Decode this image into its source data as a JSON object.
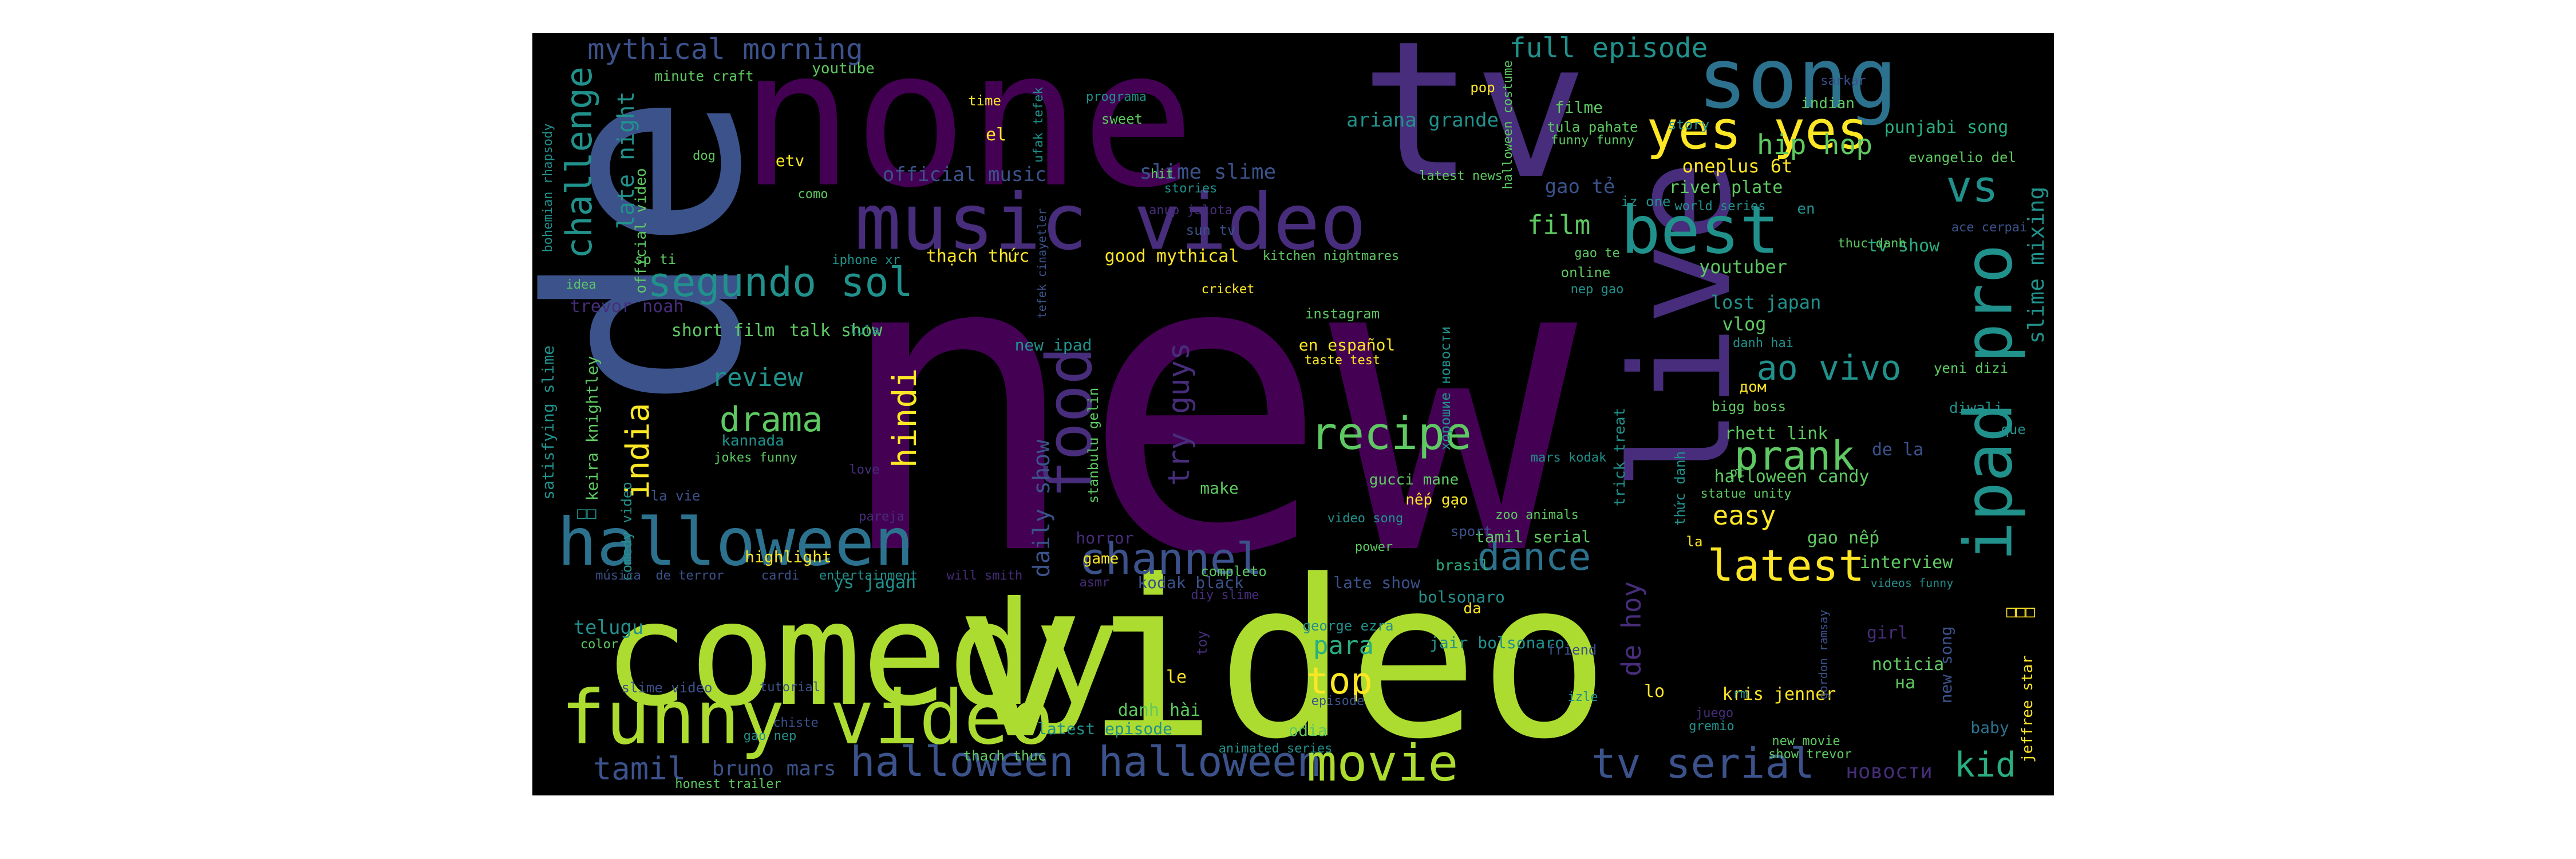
{
  "palette": {
    "background": "#000000",
    "dark_purple": "#440154",
    "purple": "#472d7b",
    "indigo": "#3b528b",
    "blue": "#2c728e",
    "teal": "#21918c",
    "green_teal": "#28ae80",
    "green": "#5ec962",
    "lime": "#addc30",
    "yellow": "#fde725"
  },
  "words": [
    {
      "text": "new",
      "color": "#440154"
    },
    {
      "text": "de",
      "color": "#3b528b"
    },
    {
      "text": "none",
      "color": "#440154"
    },
    {
      "text": "tv",
      "color": "#472d7b"
    },
    {
      "text": "video",
      "color": "#addc30"
    },
    {
      "text": "comedy",
      "color": "#addc30"
    },
    {
      "text": "live",
      "color": "#472d7b"
    },
    {
      "text": "song",
      "color": "#2c728e"
    },
    {
      "text": "music video",
      "color": "#472d7b"
    },
    {
      "text": "funny video",
      "color": "#addc30"
    },
    {
      "text": "halloween",
      "color": "#2c728e"
    },
    {
      "text": "ipad pro",
      "color": "#21918c"
    },
    {
      "text": "best",
      "color": "#21918c"
    },
    {
      "text": "yes yes",
      "color": "#fde725"
    },
    {
      "text": "food",
      "color": "#472d7b"
    },
    {
      "text": "challenge",
      "color": "#21918c"
    },
    {
      "text": "segundo sol",
      "color": "#21918c"
    },
    {
      "text": "halloween halloween",
      "color": "#3b528b"
    },
    {
      "text": "movie",
      "color": "#addc30"
    },
    {
      "text": "tv serial",
      "color": "#3b528b"
    },
    {
      "text": "channel",
      "color": "#3b528b"
    },
    {
      "text": "latest",
      "color": "#fde725"
    },
    {
      "text": "prank",
      "color": "#5ec962"
    },
    {
      "text": "recipe",
      "color": "#5ec962"
    },
    {
      "text": "dance",
      "color": "#2c728e"
    },
    {
      "text": "ao vivo",
      "color": "#21918c"
    },
    {
      "text": "vs",
      "color": "#21918c"
    },
    {
      "text": "drama",
      "color": "#5ec962"
    },
    {
      "text": "hindi",
      "color": "#fde725"
    },
    {
      "text": "india",
      "color": "#fde725"
    },
    {
      "text": "mythical morning",
      "color": "#3b528b"
    },
    {
      "text": "full episode",
      "color": "#21918c"
    },
    {
      "text": "tamil",
      "color": "#3b528b"
    },
    {
      "text": "top",
      "color": "#fde725"
    },
    {
      "text": "kid",
      "color": "#28ae80"
    },
    {
      "text": "try guys",
      "color": "#472d7b"
    },
    {
      "text": "hip hop",
      "color": "#5ec962"
    },
    {
      "text": "film",
      "color": "#5ec962"
    },
    {
      "text": "review",
      "color": "#21918c"
    },
    {
      "text": "de hoy",
      "color": "#472d7b"
    },
    {
      "text": "bruno mars",
      "color": "#3b528b"
    },
    {
      "text": "daily show",
      "color": "#3b528b"
    },
    {
      "text": "late night",
      "color": "#21918c"
    },
    {
      "text": "easy",
      "color": "#fde725"
    },
    {
      "text": "para",
      "color": "#28ae80"
    },
    {
      "text": "slime mixing",
      "color": "#21918c"
    },
    {
      "text": "ariana grande",
      "color": "#21918c"
    },
    {
      "text": "official music",
      "color": "#3b528b"
    },
    {
      "text": "slime slime",
      "color": "#3b528b"
    },
    {
      "text": "gao tẻ",
      "color": "#3b528b"
    },
    {
      "text": "oneplus 6t",
      "color": "#fde725"
    },
    {
      "text": "river plate",
      "color": "#5ec962"
    },
    {
      "text": "punjabi song",
      "color": "#28ae80"
    },
    {
      "text": "evangelio del",
      "color": "#5ec962"
    },
    {
      "text": "rhett link",
      "color": "#5ec962"
    },
    {
      "text": "lost japan",
      "color": "#21918c"
    },
    {
      "text": "vlog",
      "color": "#5ec962"
    },
    {
      "text": "tv show",
      "color": "#28ae80"
    },
    {
      "text": "youtuber",
      "color": "#5ec962"
    },
    {
      "text": "halloween candy",
      "color": "#5ec962"
    },
    {
      "text": "de la",
      "color": "#3b528b"
    },
    {
      "text": "gao nếp",
      "color": "#5ec962"
    },
    {
      "text": "interview",
      "color": "#5ec962"
    },
    {
      "text": "new song",
      "color": "#3b528b"
    },
    {
      "text": "baby",
      "color": "#2c728e"
    },
    {
      "text": "jeffree star",
      "color": "#fde725"
    },
    {
      "text": "noticia",
      "color": "#5ec962"
    },
    {
      "text": "на",
      "color": "#5ec962"
    },
    {
      "text": "kris jenner",
      "color": "#fde725"
    },
    {
      "text": "girl",
      "color": "#472d7b"
    },
    {
      "text": "новости",
      "color": "#472d7b"
    },
    {
      "text": "lo",
      "color": "#fde725"
    },
    {
      "text": "telugu",
      "color": "#21918c"
    },
    {
      "text": "highlight",
      "color": "#fde725"
    },
    {
      "text": "ys jagan",
      "color": "#21918c"
    },
    {
      "text": "horror",
      "color": "#472d7b"
    },
    {
      "text": "completo",
      "color": "#5ec962"
    },
    {
      "text": "game",
      "color": "#fde725"
    },
    {
      "text": "kodak black",
      "color": "#3b528b"
    },
    {
      "text": "late show",
      "color": "#3b528b"
    },
    {
      "text": "bolsonaro",
      "color": "#21918c"
    },
    {
      "text": "brasil",
      "color": "#28ae80"
    },
    {
      "text": "tamil serial",
      "color": "#5ec962"
    },
    {
      "text": "gucci mane",
      "color": "#5ec962"
    },
    {
      "text": "nếp gạo",
      "color": "#fde725"
    },
    {
      "text": "jair bolsonaro",
      "color": "#21918c"
    },
    {
      "text": "danh hài",
      "color": "#5ec962"
    },
    {
      "text": "latest episode",
      "color": "#21918c"
    },
    {
      "text": "odia",
      "color": "#5ec962"
    },
    {
      "text": "le",
      "color": "#fde725"
    },
    {
      "text": "new ipad",
      "color": "#21918c"
    },
    {
      "text": "en español",
      "color": "#fde725"
    },
    {
      "text": "short film",
      "color": "#5ec962"
    },
    {
      "text": "talk show",
      "color": "#5ec962"
    },
    {
      "text": "trevor noah",
      "color": "#472d7b"
    },
    {
      "text": "kannada",
      "color": "#21918c"
    },
    {
      "text": "jokes funny",
      "color": "#5ec962"
    },
    {
      "text": "keira knightley",
      "color": "#5ec962"
    },
    {
      "text": "satisfying slime",
      "color": "#21918c"
    },
    {
      "text": "comedy video",
      "color": "#21918c"
    },
    {
      "text": "official video",
      "color": "#5ec962"
    },
    {
      "text": "sp ti",
      "color": "#5ec962"
    },
    {
      "text": "idea",
      "color": "#5ec962"
    },
    {
      "text": "bohemian rhapsody",
      "color": "#21918c"
    },
    {
      "text": "minute craft",
      "color": "#5ec962"
    },
    {
      "text": "youtube",
      "color": "#5ec962"
    },
    {
      "text": "dog",
      "color": "#5ec962"
    },
    {
      "text": "como",
      "color": "#5ec962"
    },
    {
      "text": "etv",
      "color": "#fde725"
    },
    {
      "text": "el",
      "color": "#fde725"
    },
    {
      "text": "time",
      "color": "#fde725"
    },
    {
      "text": "sweet",
      "color": "#5ec962"
    },
    {
      "text": "programa",
      "color": "#21918c"
    },
    {
      "text": "pop",
      "color": "#fde725"
    },
    {
      "text": "filme",
      "color": "#5ec962"
    },
    {
      "text": "tula pahate",
      "color": "#5ec962"
    },
    {
      "text": "funny funny",
      "color": "#5ec962"
    },
    {
      "text": "story",
      "color": "#21918c"
    },
    {
      "text": "indian",
      "color": "#5ec962"
    },
    {
      "text": "sarkar",
      "color": "#3b528b"
    },
    {
      "text": "hit",
      "color": "#5ec962"
    },
    {
      "text": "stories",
      "color": "#21918c"
    },
    {
      "text": "latest news",
      "color": "#5ec962"
    },
    {
      "text": "halloween costume",
      "color": "#5ec962"
    },
    {
      "text": "iz one",
      "color": "#21918c"
    },
    {
      "text": "world series",
      "color": "#21918c"
    },
    {
      "text": "en",
      "color": "#21918c"
    },
    {
      "text": "thạch thức",
      "color": "#fde725"
    },
    {
      "text": "good mythical",
      "color": "#fde725"
    },
    {
      "text": "kitchen nightmares",
      "color": "#5ec962"
    },
    {
      "text": "ufak tefek",
      "color": "#21918c"
    },
    {
      "text": "iphone xr",
      "color": "#21918c"
    },
    {
      "text": "cricket",
      "color": "#fde725"
    },
    {
      "text": "instagram",
      "color": "#5ec962"
    },
    {
      "text": "taste test",
      "color": "#fde725"
    },
    {
      "text": "online",
      "color": "#5ec962"
    },
    {
      "text": "nep gao",
      "color": "#21918c"
    },
    {
      "text": "gao te",
      "color": "#5ec962"
    },
    {
      "text": "thuc danh",
      "color": "#5ec962"
    },
    {
      "text": "bigg boss",
      "color": "#5ec962"
    },
    {
      "text": "danh hai",
      "color": "#21918c"
    },
    {
      "text": "дом",
      "color": "#fde725"
    },
    {
      "text": "yeni dizi",
      "color": "#5ec962"
    },
    {
      "text": "diwali",
      "color": "#21918c"
    },
    {
      "text": "que",
      "color": "#21918c"
    },
    {
      "text": "statue unity",
      "color": "#5ec962"
    },
    {
      "text": "zoo animals",
      "color": "#5ec962"
    },
    {
      "text": "mars kodak",
      "color": "#21918c"
    },
    {
      "text": "video song",
      "color": "#21918c"
    },
    {
      "text": "make",
      "color": "#5ec962"
    },
    {
      "text": "stanbulu gelin",
      "color": "#5ec962"
    },
    {
      "text": "trick treat",
      "color": "#21918c"
    },
    {
      "text": "хорошие новости",
      "color": "#21918c"
    },
    {
      "text": "thức danh",
      "color": "#21918c"
    },
    {
      "text": "sun tv",
      "color": "#3b528b"
    },
    {
      "text": "anup jalota",
      "color": "#472d7b"
    },
    {
      "text": "tefek cinayetler",
      "color": "#3b528b"
    },
    {
      "text": "lula",
      "color": "#21918c"
    },
    {
      "text": "love",
      "color": "#472d7b"
    },
    {
      "text": "la vie",
      "color": "#3b528b"
    },
    {
      "text": "pareja",
      "color": "#472d7b"
    },
    {
      "text": "música",
      "color": "#3b528b"
    },
    {
      "text": "de terror",
      "color": "#3b528b"
    },
    {
      "text": "cardi",
      "color": "#3b528b"
    },
    {
      "text": "entertainment",
      "color": "#21918c"
    },
    {
      "text": "will smith",
      "color": "#472d7b"
    },
    {
      "text": "asmr",
      "color": "#472d7b"
    },
    {
      "text": "power",
      "color": "#5ec962"
    },
    {
      "text": "diy slime",
      "color": "#472d7b"
    },
    {
      "text": "toy",
      "color": "#472d7b"
    },
    {
      "text": "george ezra",
      "color": "#21918c"
    },
    {
      "text": "da",
      "color": "#fde725"
    },
    {
      "text": "friend",
      "color": "#3b528b"
    },
    {
      "text": "izle",
      "color": "#21918c"
    },
    {
      "text": "juego",
      "color": "#472d7b"
    },
    {
      "text": "gremio",
      "color": "#21918c"
    },
    {
      "text": "new movie",
      "color": "#5ec962"
    },
    {
      "text": "show trevor",
      "color": "#5ec962"
    },
    {
      "text": "animated series",
      "color": "#21918c"
    },
    {
      "text": "episode",
      "color": "#3b528b"
    },
    {
      "text": "thach thuc",
      "color": "#5ec962"
    },
    {
      "text": "tutorial",
      "color": "#3b528b"
    },
    {
      "text": "chiste",
      "color": "#3b528b"
    },
    {
      "text": "gao nep",
      "color": "#21918c"
    },
    {
      "text": "honest trailer",
      "color": "#5ec962"
    },
    {
      "text": "slime video",
      "color": "#3b528b"
    },
    {
      "text": "color",
      "color": "#5ec962"
    },
    {
      "text": "videos funny",
      "color": "#21918c"
    },
    {
      "text": "gordon ramsay",
      "color": "#3b528b"
    },
    {
      "text": "ace cerpai",
      "color": "#3b528b"
    },
    {
      "text": "sport",
      "color": "#3b528b"
    },
    {
      "text": "pt",
      "color": "#5ec962"
    },
    {
      "text": "rm",
      "color": "#21918c"
    },
    {
      "text": "la",
      "color": "#fde725"
    },
    {
      "text": "□□",
      "color": "#21918c"
    },
    {
      "text": "□□□",
      "color": "#fde725"
    }
  ]
}
